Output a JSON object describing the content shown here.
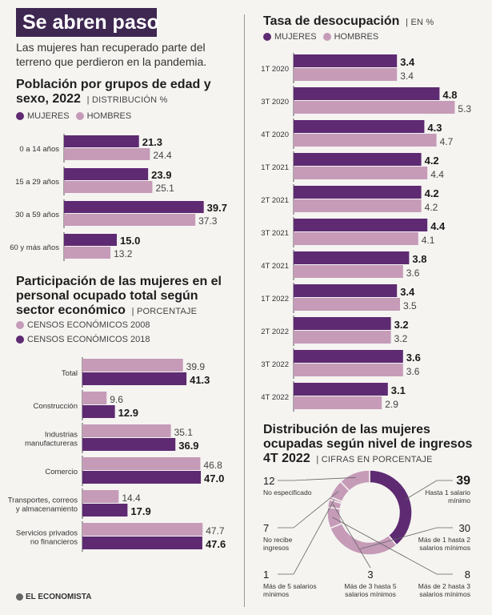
{
  "header": {
    "title": "Se abren paso",
    "subtitle": "Las mujeres han recuperado parte del terreno que perdieron en la pandemia."
  },
  "colors": {
    "dark": "#5e2a72",
    "light": "#c59bb8",
    "title_bg": "#3e2750"
  },
  "population": {
    "title": "Población por grupos de edad y sexo, 2022",
    "unit": "DISTRIBUCIÓN %",
    "legend": [
      "MUJERES",
      "HOMBRES"
    ]
  },
  "participation": {
    "title": "Participación de las mujeres en el personal ocupado total según sector económico",
    "unit": "PORCENTAJE",
    "legend": [
      "CENSOS ECONÓMICOS 2008",
      "CENSOS ECONÓMICOS 2018"
    ]
  },
  "unemployment": {
    "title": "Tasa de desocupación",
    "unit": "EN %",
    "legend": [
      "MUJERES",
      "HOMBRES"
    ]
  },
  "income": {
    "title": "Distribución de las mujeres ocupadas según nivel de ingresos 4T 2022",
    "unit": "CIFRAS EN PORCENTAJE"
  },
  "footer": {
    "logo": "EL ECONOMISTA"
  },
  "chart_data": [
    {
      "type": "bar",
      "orientation": "horizontal",
      "categories": [
        "0 a 14 años",
        "15 a 29 años",
        "30 a 59 años",
        "60 y más años"
      ],
      "series": [
        {
          "name": "MUJERES",
          "values": [
            21.3,
            23.9,
            39.7,
            15.0
          ],
          "labels": [
            "21.3",
            "23.9",
            "39.7",
            "15.0"
          ]
        },
        {
          "name": "HOMBRES",
          "values": [
            24.4,
            25.1,
            37.3,
            13.2
          ],
          "labels": [
            "24.4",
            "25.1",
            "37.3",
            "13.2"
          ]
        }
      ]
    },
    {
      "type": "bar",
      "orientation": "horizontal",
      "categories": [
        "Total",
        "Construcción",
        "Industrias manufactureras",
        "Comercio",
        "Transportes, correos y almacenamiento",
        "Servicios privados no financieros"
      ],
      "series": [
        {
          "name": "CENSOS ECONÓMICOS 2008",
          "values": [
            39.9,
            9.6,
            35.1,
            46.8,
            14.4,
            47.7
          ],
          "labels": [
            "39.9",
            "9.6",
            "35.1",
            "46.8",
            "14.4",
            "47.7"
          ]
        },
        {
          "name": "CENSOS ECONÓMICOS 2018",
          "values": [
            41.3,
            12.9,
            36.9,
            47.0,
            17.9,
            47.6
          ],
          "labels": [
            "41.3",
            "12.9",
            "36.9",
            "47.0",
            "17.9",
            "47.6"
          ]
        }
      ]
    },
    {
      "type": "bar",
      "orientation": "horizontal",
      "categories": [
        "1T 2020",
        "3T 2020",
        "4T 2020",
        "1T 2021",
        "2T 2021",
        "3T 2021",
        "4T 2021",
        "1T 2022",
        "2T 2022",
        "3T 2022",
        "4T 2022"
      ],
      "series": [
        {
          "name": "MUJERES",
          "values": [
            3.4,
            4.8,
            4.3,
            4.2,
            4.2,
            4.4,
            3.8,
            3.4,
            3.2,
            3.6,
            3.1
          ]
        },
        {
          "name": "HOMBRES",
          "values": [
            3.4,
            5.3,
            4.7,
            4.4,
            4.2,
            4.1,
            3.6,
            3.5,
            3.2,
            3.6,
            2.9
          ]
        }
      ]
    },
    {
      "type": "pie",
      "style": "donut",
      "slices": [
        {
          "label": "Hasta 1 salario mínimo",
          "value": 39
        },
        {
          "label": "Más de 1 hasta 2 salarios mínimos",
          "value": 30
        },
        {
          "label": "Más de 2 hasta 3 salarios mínimos",
          "value": 8
        },
        {
          "label": "Más de 3 hasta 5 salarios mínimos",
          "value": 3
        },
        {
          "label": "Más de 5 salarios mínimos",
          "value": 1
        },
        {
          "label": "No recibe ingresos",
          "value": 7
        },
        {
          "label": "No especificado",
          "value": 12
        }
      ]
    }
  ]
}
